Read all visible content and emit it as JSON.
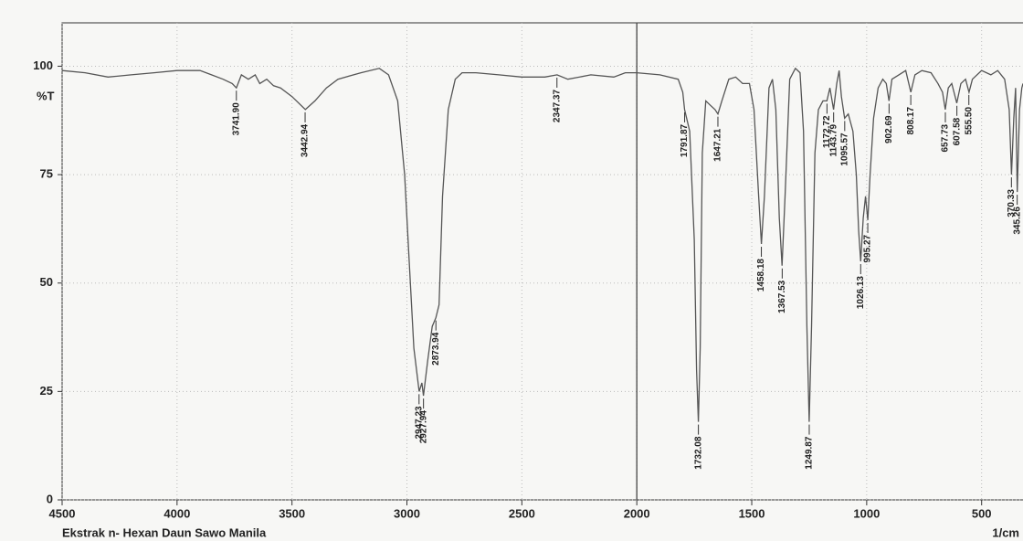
{
  "chart_data": {
    "type": "line",
    "sample_name": "Ekstrak n- Hexan Daun Sawo Manila",
    "ylabel": "%T",
    "xlabel": "1/cm",
    "color": "#555555",
    "grid": true,
    "x_reversed": true,
    "xlim": [
      4500,
      320
    ],
    "ylim": [
      0,
      110
    ],
    "xticks": [
      4500,
      4000,
      3500,
      3000,
      2500,
      2000,
      1500,
      1000,
      500
    ],
    "yticks": [
      0,
      25,
      50,
      75,
      100
    ],
    "vline": 2000,
    "x": [
      4500,
      4400,
      4300,
      4200,
      4100,
      4000,
      3900,
      3850,
      3800,
      3760,
      3742,
      3720,
      3690,
      3660,
      3640,
      3610,
      3580,
      3550,
      3500,
      3442,
      3400,
      3350,
      3300,
      3200,
      3120,
      3080,
      3040,
      3010,
      2990,
      2970,
      2947,
      2935,
      2928,
      2910,
      2890,
      2874,
      2860,
      2845,
      2820,
      2790,
      2760,
      2700,
      2600,
      2500,
      2400,
      2347,
      2300,
      2200,
      2100,
      2050,
      2000,
      1900,
      1820,
      1800,
      1792,
      1770,
      1750,
      1740,
      1732,
      1724,
      1715,
      1700,
      1680,
      1660,
      1647,
      1630,
      1600,
      1570,
      1540,
      1510,
      1490,
      1470,
      1458,
      1445,
      1425,
      1410,
      1395,
      1380,
      1368,
      1355,
      1335,
      1310,
      1290,
      1275,
      1260,
      1250,
      1240,
      1225,
      1210,
      1190,
      1173,
      1160,
      1144,
      1130,
      1120,
      1110,
      1096,
      1080,
      1060,
      1045,
      1035,
      1026,
      1015,
      1005,
      995,
      985,
      970,
      950,
      930,
      915,
      903,
      890,
      860,
      830,
      808,
      790,
      760,
      720,
      690,
      670,
      658,
      645,
      630,
      608,
      590,
      570,
      555,
      540,
      500,
      460,
      430,
      400,
      380,
      370,
      360,
      352,
      345,
      335,
      325,
      320
    ],
    "y": [
      99,
      98.5,
      97.5,
      98,
      98.5,
      99,
      99,
      98,
      97,
      96,
      95,
      98,
      97,
      98,
      96,
      97,
      95.5,
      95,
      93,
      90,
      92,
      95,
      97,
      98.5,
      99.5,
      98,
      92,
      75,
      55,
      35,
      25,
      27,
      24,
      32,
      40,
      42,
      45,
      70,
      90,
      97,
      98.5,
      98.5,
      98,
      97.5,
      97.5,
      98,
      97,
      98,
      97.5,
      98.5,
      98.5,
      98,
      97,
      94,
      90,
      85,
      60,
      30,
      18,
      35,
      80,
      92,
      91,
      90,
      89,
      92,
      97,
      97.5,
      96,
      96,
      90,
      70,
      59,
      70,
      95,
      97,
      90,
      65,
      54,
      70,
      97,
      99.5,
      98.5,
      85,
      40,
      18,
      40,
      80,
      90,
      92,
      92,
      95,
      90,
      96,
      99,
      93,
      88,
      89,
      85,
      75,
      62,
      55,
      65,
      70,
      64.5,
      75,
      88,
      95,
      97,
      96,
      92,
      97,
      98,
      99,
      94,
      98,
      99,
      98.5,
      96,
      94,
      90,
      95,
      96,
      91.5,
      96,
      97,
      94,
      97,
      99,
      98,
      99,
      97,
      90,
      75,
      88,
      95,
      71,
      90,
      95,
      96
    ],
    "peak_x": [
      3741.9,
      3442.94,
      2947.23,
      2927.94,
      2873.94,
      2347.37,
      1791.87,
      1732.08,
      1647.21,
      1458.18,
      1367.53,
      1249.87,
      1172.72,
      1143.79,
      1095.57,
      1026.13,
      995.27,
      902.69,
      808.17,
      657.73,
      607.58,
      555.5,
      370.33,
      345.26
    ],
    "peak_y": [
      95,
      90,
      25,
      24,
      42,
      98,
      90,
      18,
      89,
      59,
      54,
      18,
      92,
      90,
      88,
      55,
      64.5,
      92,
      94,
      90,
      91.5,
      94,
      75,
      71
    ],
    "peak_labels": [
      "3741.90",
      "3442.94",
      "2947.23",
      "2927.94",
      "2873.94",
      "2347.37",
      "1791.87",
      "1732.08",
      "1647.21",
      "1458.18",
      "1367.53",
      "1249.87",
      "1172.72",
      "1143.79",
      "1095.57",
      "1026.13",
      "995.27",
      "902.69",
      "808.17",
      "657.73",
      "607.58",
      "555.50",
      "370.33",
      "345.26"
    ]
  }
}
